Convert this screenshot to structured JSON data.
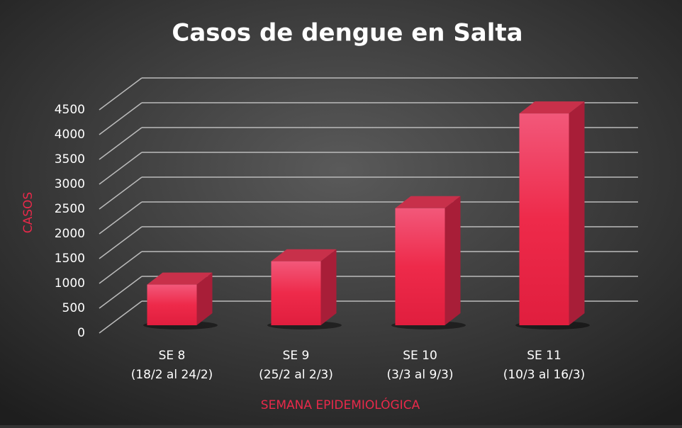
{
  "chart_data": {
    "type": "bar3d",
    "title": "Casos de dengue en Salta",
    "y_label": "CASOS",
    "x_label": "SEMANA EPIDEMIOLÓGICA",
    "categories": [
      [
        "SE 8",
        "(18/2 al 24/2)"
      ],
      [
        "SE 9",
        "(25/2 al 2/3)"
      ],
      [
        "SE 10",
        "(3/3 al 9/3)"
      ],
      [
        "SE 11",
        "(10/3 al 16/3)"
      ]
    ],
    "values": [
      820,
      1290,
      2360,
      4270
    ],
    "color": "#ee2a4a",
    "ylim": [
      0,
      4500
    ],
    "yticks": [
      0,
      500,
      1000,
      1500,
      2000,
      2500,
      3000,
      3500,
      4000,
      4500
    ],
    "grid": true
  }
}
